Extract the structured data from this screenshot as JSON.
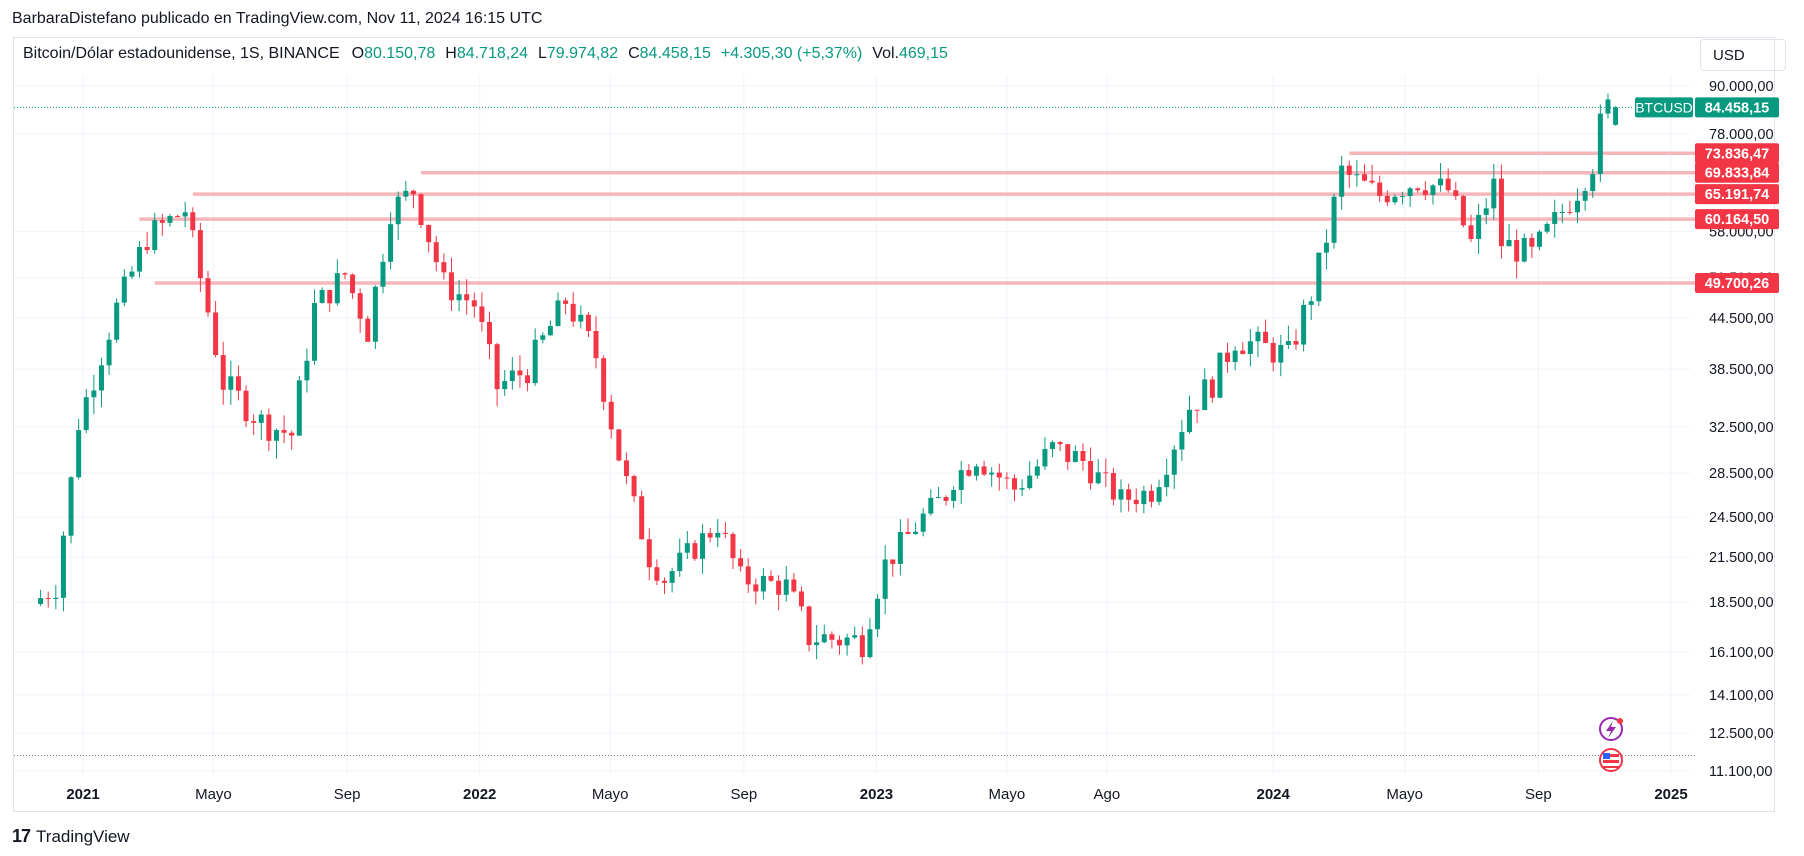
{
  "header": {
    "text": "BarbaraDistefano publicado en TradingView.com, Nov 11, 2024 16:15 UTC"
  },
  "ohlc": {
    "symbol": "Bitcoin/Dólar estadounidense, 1S, BINANCE",
    "o_label": "O",
    "o_value": "80.150,78",
    "h_label": "H",
    "h_value": "84.718,24",
    "l_label": "L",
    "l_value": "79.974,82",
    "c_label": "C",
    "c_value": "84.458,15",
    "change": "+4.305,30 (+5,37%)",
    "vol_label": "Vol.",
    "vol_value": "469,15"
  },
  "currency": "USD",
  "footer": {
    "logo": "17",
    "brand": "TradingView"
  },
  "colors": {
    "up": "#089981",
    "down": "#f23645",
    "level": "#f7b6bb",
    "grid": "#f0f3fa"
  },
  "chart_data": {
    "type": "candlestick",
    "scale": "log",
    "symbol_tag": "BTCUSD",
    "last_price": {
      "label": "84.458,15",
      "value": 84458.15
    },
    "y_ticks": [
      {
        "label": "90.000,00",
        "value": 90000
      },
      {
        "label": "78.000,00",
        "value": 78000
      },
      {
        "label": "58.000,00",
        "value": 58000
      },
      {
        "label": "50.500,00",
        "value": 50500
      },
      {
        "label": "44.500,00",
        "value": 44500
      },
      {
        "label": "38.500,00",
        "value": 38500
      },
      {
        "label": "32.500,00",
        "value": 32500
      },
      {
        "label": "28.500,00",
        "value": 28500
      },
      {
        "label": "24.500,00",
        "value": 24500
      },
      {
        "label": "21.500,00",
        "value": 21500
      },
      {
        "label": "18.500,00",
        "value": 18500
      },
      {
        "label": "16.100,00",
        "value": 16100
      },
      {
        "label": "14.100,00",
        "value": 14100
      },
      {
        "label": "12.500,00",
        "value": 12500
      },
      {
        "label": "11.100,00",
        "value": 11100
      }
    ],
    "x_ticks": [
      {
        "label": "2021",
        "bold": true,
        "date": "2021-01-01"
      },
      {
        "label": "Mayo",
        "bold": false,
        "date": "2021-05-01"
      },
      {
        "label": "Sep",
        "bold": false,
        "date": "2021-09-01"
      },
      {
        "label": "2022",
        "bold": true,
        "date": "2022-01-01"
      },
      {
        "label": "Mayo",
        "bold": false,
        "date": "2022-05-01"
      },
      {
        "label": "Sep",
        "bold": false,
        "date": "2022-09-01"
      },
      {
        "label": "2023",
        "bold": true,
        "date": "2023-01-01"
      },
      {
        "label": "Mayo",
        "bold": false,
        "date": "2023-05-01"
      },
      {
        "label": "Ago",
        "bold": false,
        "date": "2023-08-01"
      },
      {
        "label": "2024",
        "bold": true,
        "date": "2024-01-01"
      },
      {
        "label": "Mayo",
        "bold": false,
        "date": "2024-05-01"
      },
      {
        "label": "Sep",
        "bold": false,
        "date": "2024-09-01"
      },
      {
        "label": "2025",
        "bold": true,
        "date": "2025-01-01"
      }
    ],
    "levels": [
      {
        "label": "73.836,47",
        "value": 73836.47,
        "from": "2024-03-11"
      },
      {
        "label": "69.833,84",
        "value": 69833.84,
        "from": "2021-11-08"
      },
      {
        "label": "65.191,74",
        "value": 65191.74,
        "from": "2021-04-12"
      },
      {
        "label": "60.164,50",
        "value": 60164.5,
        "from": "2021-02-22"
      },
      {
        "label": "49.700,26",
        "value": 49700.26,
        "from": "2021-03-08"
      }
    ],
    "anchors": [
      [
        "2020-11-23",
        18400
      ],
      [
        "2020-12-14",
        19500
      ],
      [
        "2021-01-04",
        33000
      ],
      [
        "2021-02-08",
        46000
      ],
      [
        "2021-03-08",
        57000
      ],
      [
        "2021-04-12",
        62000
      ],
      [
        "2021-05-17",
        37000
      ],
      [
        "2021-06-21",
        33000
      ],
      [
        "2021-07-19",
        31800
      ],
      [
        "2021-08-09",
        46000
      ],
      [
        "2021-09-06",
        51000
      ],
      [
        "2021-09-27",
        43000
      ],
      [
        "2021-10-18",
        62000
      ],
      [
        "2021-11-08",
        66000
      ],
      [
        "2021-12-06",
        49500
      ],
      [
        "2022-01-03",
        46500
      ],
      [
        "2022-01-24",
        36500
      ],
      [
        "2022-02-21",
        38500
      ],
      [
        "2022-03-28",
        47000
      ],
      [
        "2022-04-25",
        40000
      ],
      [
        "2022-05-16",
        30000
      ],
      [
        "2022-06-13",
        21500
      ],
      [
        "2022-06-27",
        20000
      ],
      [
        "2022-08-15",
        24000
      ],
      [
        "2022-09-05",
        20000
      ],
      [
        "2022-10-17",
        19500
      ],
      [
        "2022-11-07",
        16800
      ],
      [
        "2022-12-26",
        16600
      ],
      [
        "2023-01-16",
        21000
      ],
      [
        "2023-02-20",
        24500
      ],
      [
        "2023-03-13",
        26500
      ],
      [
        "2023-03-20",
        28000
      ],
      [
        "2023-04-10",
        30000
      ],
      [
        "2023-05-15",
        27000
      ],
      [
        "2023-06-19",
        30500
      ],
      [
        "2023-07-17",
        29500
      ],
      [
        "2023-08-21",
        26000
      ],
      [
        "2023-09-18",
        26800
      ],
      [
        "2023-10-23",
        34500
      ],
      [
        "2023-11-13",
        37000
      ],
      [
        "2023-12-04",
        42000
      ],
      [
        "2024-01-22",
        40000
      ],
      [
        "2024-02-12",
        48000
      ],
      [
        "2024-02-26",
        57000
      ],
      [
        "2024-03-11",
        70000
      ],
      [
        "2024-04-15",
        65000
      ],
      [
        "2024-05-20",
        68000
      ],
      [
        "2024-06-17",
        66000
      ],
      [
        "2024-07-08",
        56000
      ],
      [
        "2024-07-29",
        67000
      ],
      [
        "2024-08-05",
        56000
      ],
      [
        "2024-09-02",
        54000
      ],
      [
        "2024-10-14",
        66000
      ],
      [
        "2024-10-28",
        72000
      ],
      [
        "2024-11-04",
        80000
      ],
      [
        "2024-11-11",
        84458
      ]
    ]
  }
}
